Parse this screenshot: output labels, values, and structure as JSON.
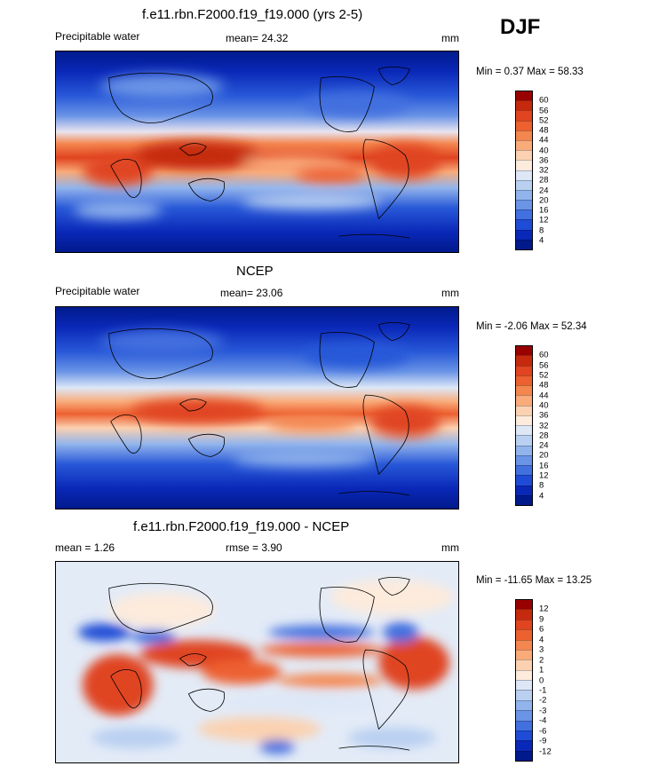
{
  "header": {
    "season": "DJF"
  },
  "chart_data": [
    {
      "type": "heatmap",
      "title": "f.e11.rbn.F2000.f19_f19.000 (yrs 2-5)",
      "variable": "Precipitable water",
      "mean_text": "mean=  24.32",
      "units": "mm",
      "minmax_text": "Min =   0.37 Max =  58.33",
      "min": 0.37,
      "max": 58.33,
      "mean": 24.32,
      "colorbar_labels": [
        "60",
        "56",
        "52",
        "48",
        "44",
        "40",
        "36",
        "32",
        "28",
        "24",
        "20",
        "16",
        "12",
        "8",
        "4"
      ],
      "colorbar_colors": [
        "#990000",
        "#c52a0e",
        "#e04420",
        "#ed6030",
        "#f4864f",
        "#f9ab7a",
        "#fbd1b1",
        "#fdebdc",
        "#dde7f6",
        "#b9d0f1",
        "#92b4ec",
        "#6a94e6",
        "#4370df",
        "#1f4cd6",
        "#0a28b8",
        "#001a8c"
      ]
    },
    {
      "type": "heatmap",
      "title": "NCEP",
      "variable": "Precipitable water",
      "mean_text": "mean=  23.06",
      "units": "mm",
      "minmax_text": "Min =  -2.06 Max =  52.34",
      "min": -2.06,
      "max": 52.34,
      "mean": 23.06,
      "colorbar_labels": [
        "60",
        "56",
        "52",
        "48",
        "44",
        "40",
        "36",
        "32",
        "28",
        "24",
        "20",
        "16",
        "12",
        "8",
        "4"
      ],
      "colorbar_colors": [
        "#990000",
        "#c52a0e",
        "#e04420",
        "#ed6030",
        "#f4864f",
        "#f9ab7a",
        "#fbd1b1",
        "#fdebdc",
        "#dde7f6",
        "#b9d0f1",
        "#92b4ec",
        "#6a94e6",
        "#4370df",
        "#1f4cd6",
        "#0a28b8",
        "#001a8c"
      ]
    },
    {
      "type": "heatmap",
      "title": "f.e11.rbn.F2000.f19_f19.000 - NCEP",
      "mean_text": "mean =   1.26",
      "rmse_text": "rmse =    3.90",
      "units": "mm",
      "minmax_text": "Min = -11.65 Max =  13.25",
      "min": -11.65,
      "max": 13.25,
      "mean": 1.26,
      "rmse": 3.9,
      "colorbar_labels": [
        "12",
        "9",
        "6",
        "4",
        "3",
        "2",
        "1",
        "0",
        "-1",
        "-2",
        "-3",
        "-4",
        "-6",
        "-9",
        "-12"
      ],
      "colorbar_colors": [
        "#990000",
        "#c52a0e",
        "#e04420",
        "#ed6030",
        "#f4864f",
        "#f9ab7a",
        "#fbd1b1",
        "#fdebdc",
        "#dde7f6",
        "#b9d0f1",
        "#92b4ec",
        "#6a94e6",
        "#4370df",
        "#1f4cd6",
        "#0a28b8",
        "#001a8c"
      ]
    }
  ]
}
